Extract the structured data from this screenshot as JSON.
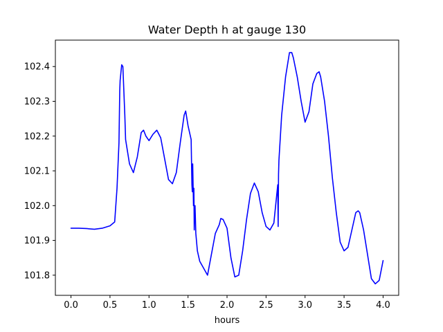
{
  "chart_data": {
    "type": "line",
    "title": "Water Depth h at gauge 130",
    "xlabel": "hours",
    "ylabel": "",
    "xlim": [
      -0.2,
      4.2
    ],
    "ylim": [
      101.742,
      102.476
    ],
    "xticks": [
      0.0,
      0.5,
      1.0,
      1.5,
      2.0,
      2.5,
      3.0,
      3.5,
      4.0
    ],
    "xtick_labels": [
      "0.0",
      "0.5",
      "1.0",
      "1.5",
      "2.0",
      "2.5",
      "3.0",
      "3.5",
      "4.0"
    ],
    "yticks": [
      101.8,
      101.9,
      102.0,
      102.1,
      102.2,
      102.3,
      102.4
    ],
    "ytick_labels": [
      "101.8",
      "101.9",
      "102.0",
      "102.1",
      "102.2",
      "102.3",
      "102.4"
    ],
    "grid": false,
    "series": [
      {
        "color": "#0000ff",
        "x": [
          0.0,
          0.1,
          0.2,
          0.3,
          0.4,
          0.5,
          0.56,
          0.59,
          0.615,
          0.625,
          0.63,
          0.65,
          0.665,
          0.69,
          0.7,
          0.75,
          0.8,
          0.85,
          0.9,
          0.93,
          0.96,
          1.0,
          1.05,
          1.1,
          1.15,
          1.2,
          1.25,
          1.3,
          1.35,
          1.4,
          1.45,
          1.47,
          1.5,
          1.54,
          1.55,
          1.555,
          1.56,
          1.565,
          1.57,
          1.575,
          1.58,
          1.585,
          1.59,
          1.6,
          1.62,
          1.65,
          1.7,
          1.75,
          1.8,
          1.85,
          1.9,
          1.92,
          1.95,
          2.0,
          2.05,
          2.1,
          2.15,
          2.2,
          2.25,
          2.3,
          2.35,
          2.4,
          2.45,
          2.5,
          2.55,
          2.6,
          2.65,
          2.655,
          2.66,
          2.665,
          2.7,
          2.75,
          2.8,
          2.83,
          2.85,
          2.9,
          2.95,
          3.0,
          3.05,
          3.1,
          3.15,
          3.18,
          3.2,
          3.25,
          3.3,
          3.35,
          3.4,
          3.45,
          3.5,
          3.55,
          3.6,
          3.65,
          3.68,
          3.7,
          3.75,
          3.8,
          3.85,
          3.9,
          3.95,
          4.0
        ],
        "y": [
          101.935,
          101.935,
          101.934,
          101.932,
          101.935,
          101.942,
          101.953,
          102.05,
          102.18,
          102.33,
          102.36,
          102.405,
          102.4,
          102.26,
          102.19,
          102.12,
          102.095,
          102.14,
          102.21,
          102.217,
          102.2,
          102.187,
          102.205,
          102.217,
          102.195,
          102.135,
          102.075,
          102.063,
          102.095,
          102.18,
          102.26,
          102.272,
          102.23,
          102.19,
          102.06,
          102.04,
          102.12,
          102.06,
          102.0,
          102.05,
          101.93,
          102.0,
          102.0,
          101.92,
          101.87,
          101.84,
          101.82,
          101.8,
          101.86,
          101.92,
          101.945,
          101.963,
          101.96,
          101.935,
          101.85,
          101.795,
          101.8,
          101.87,
          101.96,
          102.035,
          102.065,
          102.04,
          101.98,
          101.94,
          101.93,
          101.95,
          102.06,
          101.94,
          102.09,
          102.13,
          102.26,
          102.37,
          102.44,
          102.44,
          102.425,
          102.37,
          102.3,
          102.24,
          102.27,
          102.35,
          102.38,
          102.385,
          102.37,
          102.3,
          102.2,
          102.08,
          101.98,
          101.895,
          101.87,
          101.88,
          101.93,
          101.98,
          101.985,
          101.98,
          101.93,
          101.86,
          101.79,
          101.775,
          101.785,
          101.842
        ]
      }
    ]
  }
}
